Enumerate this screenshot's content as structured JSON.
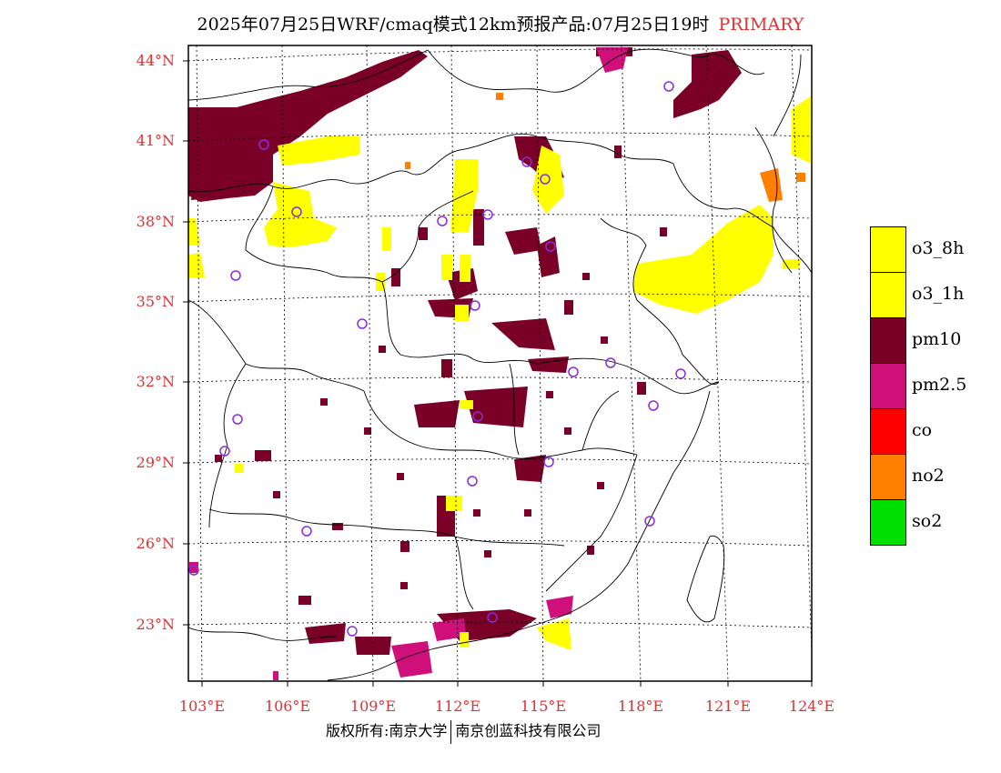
{
  "title": {
    "text": "2025年07月25日WRF/cmaq模式12km预报产品:07月25日19时",
    "tag": "PRIMARY"
  },
  "map": {
    "lat_labels": [
      "44°N",
      "41°N",
      "38°N",
      "35°N",
      "32°N",
      "29°N",
      "26°N",
      "23°N"
    ],
    "lon_labels": [
      "103°E",
      "106°E",
      "109°E",
      "112°E",
      "115°E",
      "118°E",
      "121°E",
      "124°E"
    ]
  },
  "legend": {
    "items": [
      {
        "label": "o3_8h",
        "color": "#ffff00"
      },
      {
        "label": "o3_1h",
        "color": "#ffff00"
      },
      {
        "label": "pm10",
        "color": "#7b0028"
      },
      {
        "label": "pm2.5",
        "color": "#d0107a"
      },
      {
        "label": "co",
        "color": "#ff0000"
      },
      {
        "label": "no2",
        "color": "#ff7f00"
      },
      {
        "label": "so2",
        "color": "#00e000"
      }
    ]
  },
  "footer": {
    "left": "版权所有:南京大学",
    "right": "南京创蓝科技有限公司"
  }
}
